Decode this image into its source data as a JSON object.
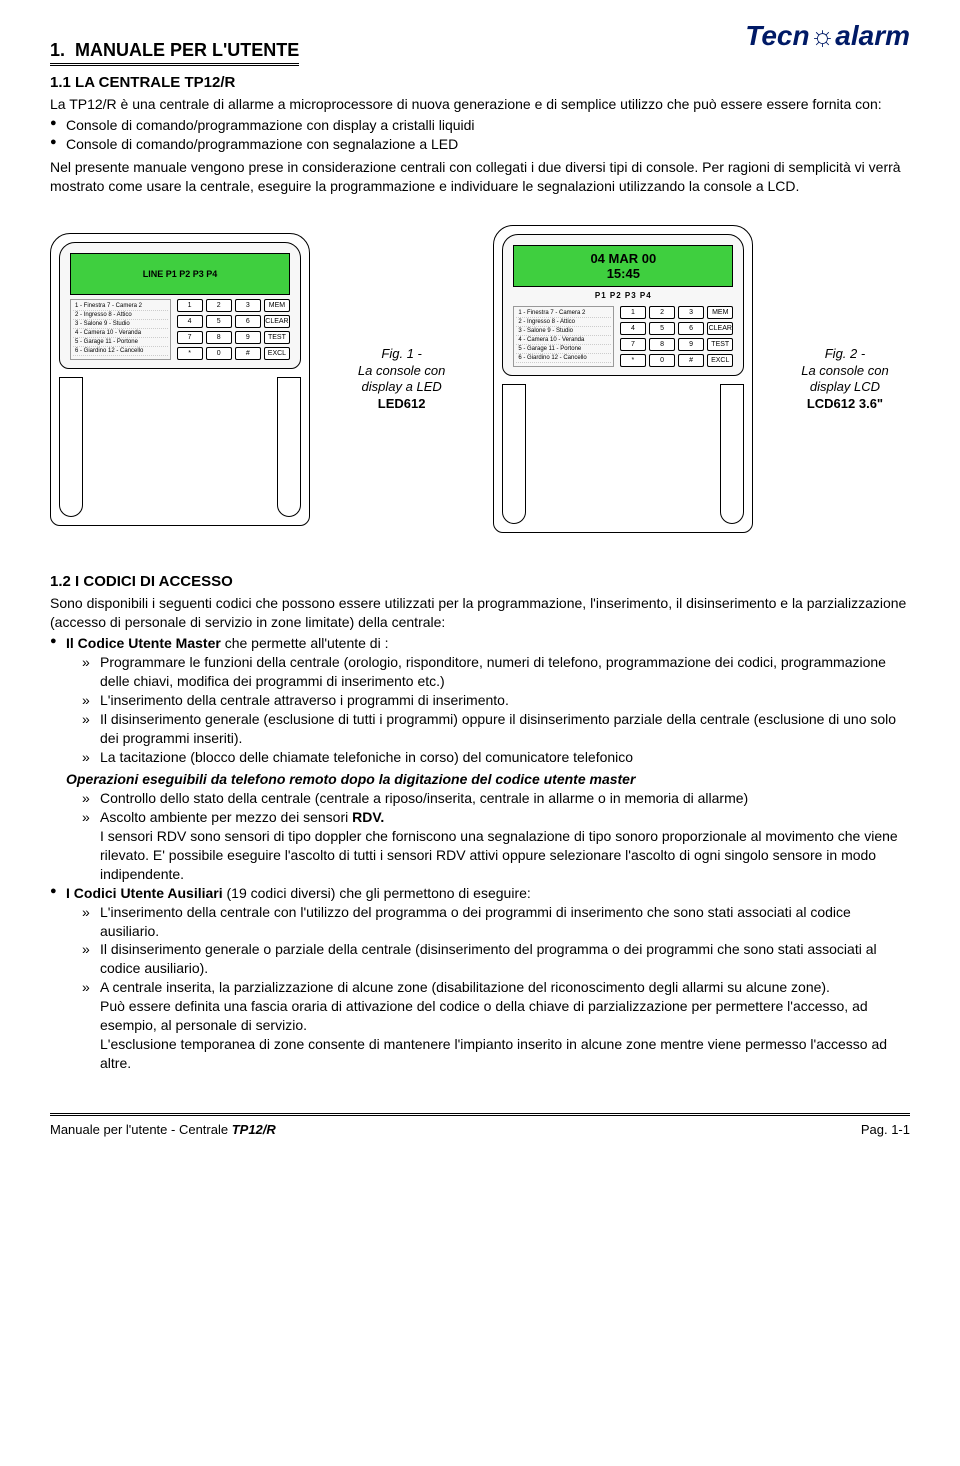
{
  "logo_text": "Tecn",
  "logo_text2": "alarm",
  "section1": {
    "number": "1.",
    "title": "MANUALE PER L'UTENTE"
  },
  "sub11": {
    "number": "1.1",
    "title": "LA CENTRALE TP12/R",
    "intro": "La TP12/R è una centrale di allarme a microprocessore di nuova generazione e di semplice utilizzo che può essere essere fornita con:",
    "bullets": [
      "Console di comando/programmazione con display a cristalli liquidi",
      "Console di comando/programmazione con segnalazione a LED"
    ],
    "after": "Nel presente manuale vengono prese in considerazione centrali con collegati i due diversi tipi di console. Per ragioni di semplicità vi verrà mostrato come usare la centrale, eseguire la programmazione e individuare le segnalazioni utilizzando la console a LCD."
  },
  "console1": {
    "lcd_line_label": "LINE P1 P2 P3 P4",
    "zones": [
      "1 - Finestra  7 - Camera 2",
      "2 - Ingresso  8 - Attico",
      "3 - Salone  9 - Studio",
      "4 - Camera  10 - Veranda",
      "5 - Garage  11 - Portone",
      "6 - Giardino  12 - Cancello"
    ],
    "keys": [
      "1",
      "2",
      "3",
      "MEM",
      "4",
      "5",
      "6",
      "CLEAR",
      "7",
      "8",
      "9",
      "TEST",
      "*",
      "0",
      "#",
      "EXCL"
    ]
  },
  "console2": {
    "lcd_line1": "04 MAR 00",
    "lcd_line2": "15:45",
    "p_row": "P1 P2 P3 P4",
    "zones": [
      "1 - Finestra  7 - Camera 2",
      "2 - Ingresso  8 - Attico",
      "3 - Salone  9 - Studio",
      "4 - Camera  10 - Veranda",
      "5 - Garage  11 - Portone",
      "6 - Giardino  12 - Cancello"
    ],
    "keys": [
      "1",
      "2",
      "3",
      "MEM",
      "4",
      "5",
      "6",
      "CLEAR",
      "7",
      "8",
      "9",
      "TEST",
      "*",
      "0",
      "#",
      "EXCL"
    ]
  },
  "fig1": {
    "line1": "Fig. 1 -",
    "line2": "La console con display a LED",
    "model": "LED612"
  },
  "fig2": {
    "line1": "Fig. 2 -",
    "line2": "La console con display LCD",
    "model": "LCD612 3.6\""
  },
  "sub12": {
    "number": "1.2",
    "title": "I CODICI DI ACCESSO",
    "intro": "Sono disponibili i seguenti codici che possono essere utilizzati per la programmazione, l'inserimento, il disinserimento e la parzializzazione (accesso di personale di servizio in zone limitate) della centrale:",
    "master_label": "Il Codice Utente Master",
    "master_after": " che permette all'utente di :",
    "master_subs": [
      "Programmare le funzioni della centrale (orologio, risponditore, numeri di telefono, programmazione dei codici, programmazione delle chiavi, modifica dei programmi di inserimento etc.)",
      "L'inserimento della centrale attraverso i programmi di inserimento.",
      "Il disinserimento generale (esclusione di tutti i programmi) oppure il disinserimento parziale della centrale (esclusione di uno solo dei programmi inseriti).",
      "La tacitazione (blocco delle chiamate telefoniche in corso) del comunicatore telefonico"
    ],
    "ops_title": "Operazioni eseguibili da telefono remoto dopo la digitazione del codice utente master",
    "ops_subs_1": "Controllo dello stato della centrale (centrale a riposo/inserita, centrale in allarme o in memoria di allarme)",
    "ops_subs_2a": "Ascolto ambiente per mezzo dei sensori ",
    "ops_subs_2b": "RDV.",
    "rdv_para": "I sensori RDV sono sensori di tipo doppler che forniscono una segnalazione di tipo sonoro proporzionale al movimento che viene rilevato. E' possibile eseguire l'ascolto di tutti i sensori RDV attivi oppure selezionare l'ascolto di ogni singolo sensore in modo indipendente.",
    "aux_label": "I Codici Utente Ausiliari",
    "aux_after": " (19 codici diversi) che gli permettono di eseguire:",
    "aux_subs": [
      "L'inserimento della centrale con l'utilizzo del programma o dei programmi di inserimento che sono stati associati al codice ausiliario.",
      "Il disinserimento generale o parziale della centrale (disinserimento del programma o dei programmi che sono stati associati al codice ausiliario).",
      "A centrale inserita, la parzializzazione di alcune zone (disabilitazione del riconoscimento degli allarmi su alcune zone)."
    ],
    "aux_tail1": "Può essere definita una fascia oraria di attivazione del codice o della chiave di parzializzazione per permettere l'accesso, ad esempio, al personale di servizio.",
    "aux_tail2": "L'esclusione temporanea di zone consente di mantenere l'impianto inserito in alcune zone mentre viene permesso l'accesso ad altre."
  },
  "footer": {
    "left_pre": "Manuale per l'utente - Centrale ",
    "left_model": "TP12/R",
    "right": "Pag. 1-1"
  },
  "colors": {
    "lcd_bg": "#3fcf3f",
    "logo": "#001a66"
  }
}
